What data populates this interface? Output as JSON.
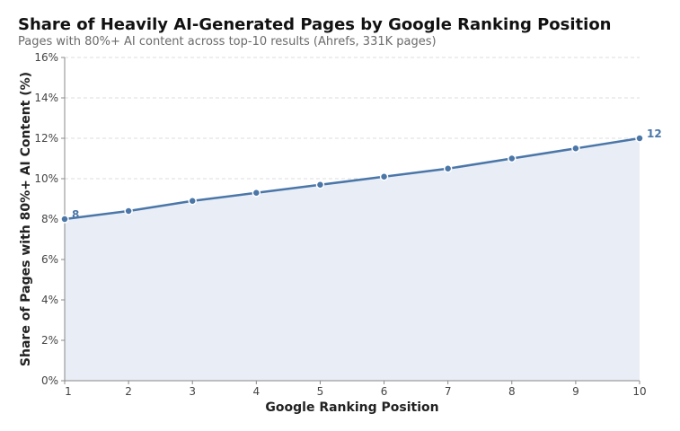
{
  "title": "Share of Heavily AI-Generated Pages by Google Ranking Position",
  "subtitle": "Pages with 80%+ AI content across top-10 results (Ahrefs, 331K pages)",
  "colors": {
    "line": "#4a76a8",
    "area": "#e8edf6",
    "grid": "#dcdcdc",
    "axis": "#888888"
  },
  "chart_data": {
    "type": "area",
    "xlabel": "Google Ranking Position",
    "ylabel": "Share of Pages with 80%+ AI Content (%)",
    "x": [
      1,
      2,
      3,
      4,
      5,
      6,
      7,
      8,
      9,
      10
    ],
    "series": [
      {
        "values": [
          8.0,
          8.4,
          8.9,
          9.3,
          9.7,
          10.1,
          10.5,
          11.0,
          11.5,
          12.0
        ]
      }
    ],
    "xlim": [
      1,
      10
    ],
    "ylim": [
      0,
      16
    ],
    "xticks": [
      "1",
      "2",
      "3",
      "4",
      "5",
      "6",
      "7",
      "8",
      "9",
      "10"
    ],
    "yticks": [
      "0%",
      "2%",
      "4%",
      "6%",
      "8%",
      "10%",
      "12%",
      "14%",
      "16%"
    ],
    "annotations": [
      "8",
      "12"
    ],
    "grid": true,
    "legend": "none"
  }
}
